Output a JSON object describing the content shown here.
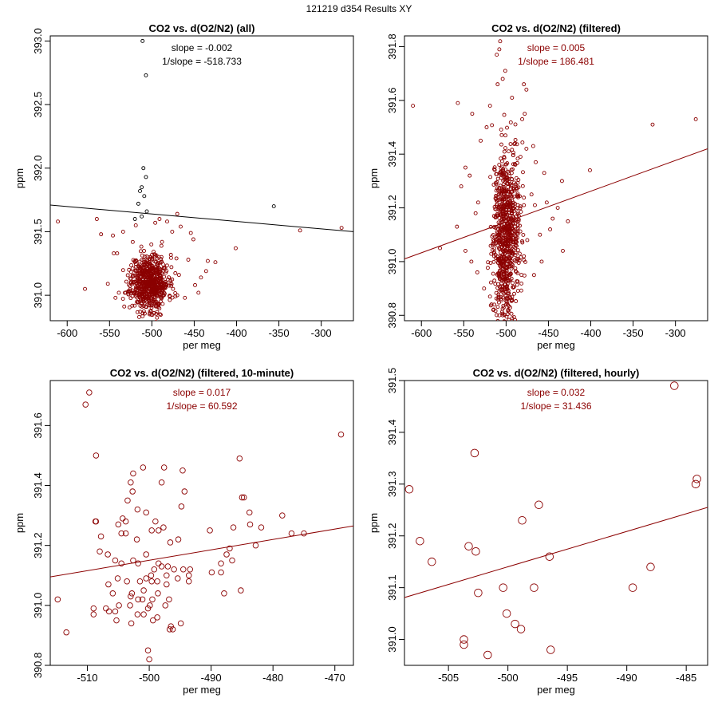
{
  "page_title": "121219   d354   Results XY",
  "colors": {
    "series": "#8b0000",
    "black": "#000000"
  },
  "chart_data": [
    {
      "type": "scatter",
      "title": "CO2 vs. d(O2/N2) (all)",
      "xlabel": "per meg",
      "ylabel": "ppm",
      "xlim": [
        -620,
        -262
      ],
      "ylim": [
        390.8,
        393.04
      ],
      "xticks": [
        -600,
        -550,
        -500,
        -450,
        -400,
        -350,
        -300
      ],
      "yticks": [
        391.0,
        391.5,
        392.0,
        392.5,
        393.0
      ],
      "ytick_labels": [
        "391.0",
        "391.5",
        "392.0",
        "392.5",
        "393.0"
      ],
      "annotation": [
        "slope = -0.002",
        "1/slope = -518.733"
      ],
      "annotation_color": "#000000",
      "line": {
        "x": [
          -620,
          -262
        ],
        "y": [
          391.71,
          391.5
        ],
        "color": "#000000"
      },
      "cluster": {
        "n": 650,
        "cx": -503,
        "cy": 391.1,
        "sx": 11,
        "sy": 0.11,
        "seed": 11
      },
      "points": [
        [
          -511,
          393.0
        ],
        [
          -507,
          392.73
        ],
        [
          -510,
          392.0
        ],
        [
          -507,
          391.93
        ],
        [
          -512,
          391.85
        ],
        [
          -514,
          391.82
        ],
        [
          -509,
          391.78
        ],
        [
          -516,
          391.72
        ],
        [
          -506,
          391.66
        ],
        [
          -512,
          391.62
        ],
        [
          -520,
          391.6
        ],
        [
          -519,
          391.55
        ],
        [
          -496,
          391.57
        ],
        [
          -482,
          391.58
        ],
        [
          -491,
          391.6
        ],
        [
          -470,
          391.64
        ],
        [
          -466,
          391.54
        ],
        [
          -476,
          391.5
        ],
        [
          -451,
          391.44
        ],
        [
          -454,
          391.49
        ],
        [
          -534,
          391.5
        ],
        [
          -546,
          391.47
        ],
        [
          -541,
          391.33
        ],
        [
          -545,
          391.33
        ],
        [
          -560,
          391.48
        ],
        [
          -565,
          391.6
        ],
        [
          -611,
          391.58
        ],
        [
          -579,
          391.05
        ],
        [
          -527,
          391.2
        ],
        [
          -552,
          391.09
        ],
        [
          -543,
          390.98
        ],
        [
          -539,
          391.02
        ],
        [
          -484,
          391.06
        ],
        [
          -471,
          391.29
        ],
        [
          -468,
          391.16
        ],
        [
          -457,
          391.28
        ],
        [
          -449,
          391.08
        ],
        [
          -445,
          391.02
        ],
        [
          -442,
          391.14
        ],
        [
          -436,
          391.19
        ],
        [
          -434,
          391.27
        ],
        [
          -425,
          391.26
        ],
        [
          -401,
          391.37
        ],
        [
          -356,
          391.7
        ],
        [
          -325,
          391.51
        ],
        [
          -276,
          391.53
        ],
        [
          -461,
          390.98
        ],
        [
          -470,
          391.0
        ],
        [
          -475,
          391.05
        ],
        [
          -488,
          391.42
        ],
        [
          -490,
          391.16
        ]
      ]
    },
    {
      "type": "scatter",
      "title": "CO2 vs. d(O2/N2) (filtered)",
      "xlabel": "per meg",
      "ylabel": "ppm",
      "xlim": [
        -620,
        -262
      ],
      "ylim": [
        390.78,
        391.84
      ],
      "xticks": [
        -600,
        -550,
        -500,
        -450,
        -400,
        -350,
        -300
      ],
      "yticks": [
        390.8,
        391.0,
        391.2,
        391.4,
        391.6,
        391.8
      ],
      "ytick_labels": [
        "390.8",
        "391.0",
        "391.2",
        "391.4",
        "391.6",
        "391.8"
      ],
      "annotation": [
        "slope = 0.005",
        "1/slope = 186.481"
      ],
      "annotation_color": "#8b0000",
      "line": {
        "x": [
          -620,
          -262
        ],
        "y": [
          391.01,
          391.42
        ],
        "color": "#8b0000"
      },
      "cluster": {
        "n": 800,
        "cx": -500,
        "cy": 391.1,
        "sx": 8,
        "sy": 0.16,
        "seed": 29
      },
      "points": [
        [
          -507,
          391.82
        ],
        [
          -508,
          391.79
        ],
        [
          -511,
          391.77
        ],
        [
          -501,
          391.71
        ],
        [
          -504,
          391.68
        ],
        [
          -510,
          391.66
        ],
        [
          -479,
          391.66
        ],
        [
          -476,
          391.64
        ],
        [
          -493,
          391.61
        ],
        [
          -519,
          391.58
        ],
        [
          -610,
          391.58
        ],
        [
          -557,
          391.59
        ],
        [
          -540,
          391.55
        ],
        [
          -478,
          391.55
        ],
        [
          -481,
          391.53
        ],
        [
          -523,
          391.5
        ],
        [
          -468,
          391.43
        ],
        [
          -476,
          391.42
        ],
        [
          -483,
          391.39
        ],
        [
          -465,
          391.37
        ],
        [
          -455,
          391.33
        ],
        [
          -401,
          391.34
        ],
        [
          -327,
          391.51
        ],
        [
          -276,
          391.53
        ],
        [
          -434,
          391.3
        ],
        [
          -439,
          391.2
        ],
        [
          -466,
          391.21
        ],
        [
          -452,
          391.22
        ],
        [
          -470,
          391.25
        ],
        [
          -427,
          391.15
        ],
        [
          -445,
          391.16
        ],
        [
          -448,
          391.12
        ],
        [
          -460,
          391.1
        ],
        [
          -475,
          391.08
        ],
        [
          -479,
          391.02
        ],
        [
          -467,
          390.95
        ],
        [
          -433,
          391.04
        ],
        [
          -458,
          391.0
        ],
        [
          -548,
          391.35
        ],
        [
          -543,
          391.32
        ],
        [
          -553,
          391.28
        ],
        [
          -530,
          391.45
        ],
        [
          -533,
          391.22
        ],
        [
          -536,
          391.18
        ],
        [
          -558,
          391.13
        ],
        [
          -578,
          391.05
        ],
        [
          -548,
          391.04
        ],
        [
          -541,
          391.0
        ],
        [
          -534,
          390.96
        ],
        [
          -526,
          390.9
        ],
        [
          -519,
          390.87
        ],
        [
          -508,
          390.8
        ],
        [
          -504,
          390.8
        ],
        [
          -514,
          390.84
        ]
      ]
    },
    {
      "type": "scatter",
      "title": "CO2 vs. d(O2/N2) (filtered, 10-minute)",
      "xlabel": "per meg",
      "ylabel": "ppm",
      "xlim": [
        -516,
        -467
      ],
      "ylim": [
        390.8,
        391.75
      ],
      "xticks": [
        -510,
        -500,
        -490,
        -480,
        -470
      ],
      "yticks": [
        390.8,
        391.0,
        391.2,
        391.4,
        391.6
      ],
      "ytick_labels": [
        "390.8",
        "391.0",
        "391.2",
        "391.4",
        "391.6"
      ],
      "annotation": [
        "slope = 0.017",
        "1/slope = 60.592"
      ],
      "annotation_color": "#8b0000",
      "line": {
        "x": [
          -516,
          -467
        ],
        "y": [
          391.095,
          391.265
        ],
        "color": "#8b0000"
      },
      "cluster": null,
      "points": [
        [
          -509.7,
          391.71
        ],
        [
          -510.3,
          391.67
        ],
        [
          -508.6,
          391.5
        ],
        [
          -469,
          391.57
        ],
        [
          -485.4,
          391.49
        ],
        [
          -497.6,
          391.46
        ],
        [
          -501,
          391.46
        ],
        [
          -502.6,
          391.44
        ],
        [
          -494.6,
          391.45
        ],
        [
          -503,
          391.41
        ],
        [
          -498,
          391.41
        ],
        [
          -502.7,
          391.38
        ],
        [
          -494.3,
          391.38
        ],
        [
          -503.5,
          391.35
        ],
        [
          -485,
          391.36
        ],
        [
          -484.7,
          391.36
        ],
        [
          -494.8,
          391.33
        ],
        [
          -501.9,
          391.32
        ],
        [
          -500.5,
          391.31
        ],
        [
          -483.8,
          391.31
        ],
        [
          -478.5,
          391.3
        ],
        [
          -504.3,
          391.29
        ],
        [
          -505,
          391.27
        ],
        [
          -508.7,
          391.28
        ],
        [
          -508.6,
          391.28
        ],
        [
          -499,
          391.28
        ],
        [
          -503.8,
          391.28
        ],
        [
          -497.7,
          391.26
        ],
        [
          -486.4,
          391.26
        ],
        [
          -483.7,
          391.27
        ],
        [
          -481.9,
          391.26
        ],
        [
          -490.2,
          391.25
        ],
        [
          -499.6,
          391.25
        ],
        [
          -498.5,
          391.25
        ],
        [
          -503.8,
          391.24
        ],
        [
          -504.5,
          391.24
        ],
        [
          -477,
          391.24
        ],
        [
          -475,
          391.24
        ],
        [
          -507.8,
          391.23
        ],
        [
          -502,
          391.22
        ],
        [
          -496.6,
          391.21
        ],
        [
          -495.3,
          391.22
        ],
        [
          -487,
          391.19
        ],
        [
          -508,
          391.18
        ],
        [
          -506.7,
          391.17
        ],
        [
          -500.5,
          391.17
        ],
        [
          -482.8,
          391.2
        ],
        [
          -487.5,
          391.17
        ],
        [
          -486.6,
          391.15
        ],
        [
          -504.5,
          391.14
        ],
        [
          -498.5,
          391.14
        ],
        [
          -497,
          391.13
        ],
        [
          -501.8,
          391.14
        ],
        [
          -502.6,
          391.15
        ],
        [
          -505.5,
          391.15
        ],
        [
          -499.2,
          391.12
        ],
        [
          -498,
          391.13
        ],
        [
          -497.2,
          391.1
        ],
        [
          -496,
          391.12
        ],
        [
          -494.5,
          391.12
        ],
        [
          -493.4,
          391.12
        ],
        [
          -499.7,
          391.1
        ],
        [
          -489.9,
          391.11
        ],
        [
          -488.4,
          391.14
        ],
        [
          -488.4,
          391.11
        ],
        [
          -505.1,
          391.09
        ],
        [
          -503.6,
          391.08
        ],
        [
          -501.5,
          391.08
        ],
        [
          -500.5,
          391.09
        ],
        [
          -498.7,
          391.08
        ],
        [
          -495.4,
          391.09
        ],
        [
          -493.6,
          391.1
        ],
        [
          -493.6,
          391.08
        ],
        [
          -506.6,
          391.07
        ],
        [
          -499.6,
          391.08
        ],
        [
          -497.2,
          391.07
        ],
        [
          -485.2,
          391.05
        ],
        [
          -500.9,
          391.05
        ],
        [
          -502.8,
          391.04
        ],
        [
          -505.9,
          391.04
        ],
        [
          -487.9,
          391.04
        ],
        [
          -499.5,
          391.02
        ],
        [
          -501.1,
          391.02
        ],
        [
          -501.8,
          391.02
        ],
        [
          -503,
          391.03
        ],
        [
          -496.8,
          391.02
        ],
        [
          -498.6,
          391.04
        ],
        [
          -497.4,
          391.0
        ],
        [
          -499.9,
          391.0
        ],
        [
          -500.2,
          390.99
        ],
        [
          -507,
          390.99
        ],
        [
          -503.1,
          391.0
        ],
        [
          -509,
          390.99
        ],
        [
          -514.8,
          391.02
        ],
        [
          -504.9,
          391.0
        ],
        [
          -505.5,
          390.98
        ],
        [
          -506.5,
          390.98
        ],
        [
          -509,
          390.97
        ],
        [
          -500.9,
          390.97
        ],
        [
          -501.9,
          390.97
        ],
        [
          -498.7,
          390.96
        ],
        [
          -499.4,
          390.95
        ],
        [
          -505.3,
          390.95
        ],
        [
          -502.9,
          390.94
        ],
        [
          -496.5,
          390.93
        ],
        [
          -513.4,
          390.91
        ],
        [
          -496.7,
          390.92
        ],
        [
          -496.2,
          390.92
        ],
        [
          -494.9,
          390.94
        ],
        [
          -500.2,
          390.85
        ],
        [
          -500,
          390.82
        ]
      ]
    },
    {
      "type": "scatter",
      "title": "CO2 vs. d(O2/N2) (filtered, hourly)",
      "xlabel": "per meg",
      "ylabel": "ppm",
      "xlim": [
        -508.7,
        -483.2
      ],
      "ylim": [
        390.95,
        391.5
      ],
      "xticks": [
        -505,
        -500,
        -495,
        -490,
        -485
      ],
      "yticks": [
        391.0,
        391.1,
        391.2,
        391.3,
        391.4,
        391.5
      ],
      "ytick_labels": [
        "391.0",
        "391.1",
        "391.2",
        "391.3",
        "391.4",
        "391.5"
      ],
      "annotation": [
        "slope = 0.032",
        "1/slope = 31.436"
      ],
      "annotation_color": "#8b0000",
      "line": {
        "x": [
          -508.7,
          -483.2
        ],
        "y": [
          391.081,
          391.255
        ],
        "color": "#8b0000"
      },
      "cluster": null,
      "points": [
        [
          -508.3,
          391.29
        ],
        [
          -507.4,
          391.19
        ],
        [
          -506.4,
          391.15
        ],
        [
          -503.3,
          391.18
        ],
        [
          -502.7,
          391.17
        ],
        [
          -502.8,
          391.36
        ],
        [
          -502.5,
          391.09
        ],
        [
          -503.7,
          391.0
        ],
        [
          -503.7,
          390.99
        ],
        [
          -501.7,
          390.97
        ],
        [
          -500.4,
          391.1
        ],
        [
          -500.1,
          391.05
        ],
        [
          -499.4,
          391.03
        ],
        [
          -498.9,
          391.02
        ],
        [
          -498.8,
          391.23
        ],
        [
          -497.8,
          391.1
        ],
        [
          -497.4,
          391.26
        ],
        [
          -496.5,
          391.16
        ],
        [
          -496.4,
          390.98
        ],
        [
          -489.5,
          391.1
        ],
        [
          -488,
          391.14
        ],
        [
          -486,
          391.49
        ],
        [
          -484.2,
          391.3
        ],
        [
          -484.1,
          391.31
        ]
      ]
    }
  ]
}
